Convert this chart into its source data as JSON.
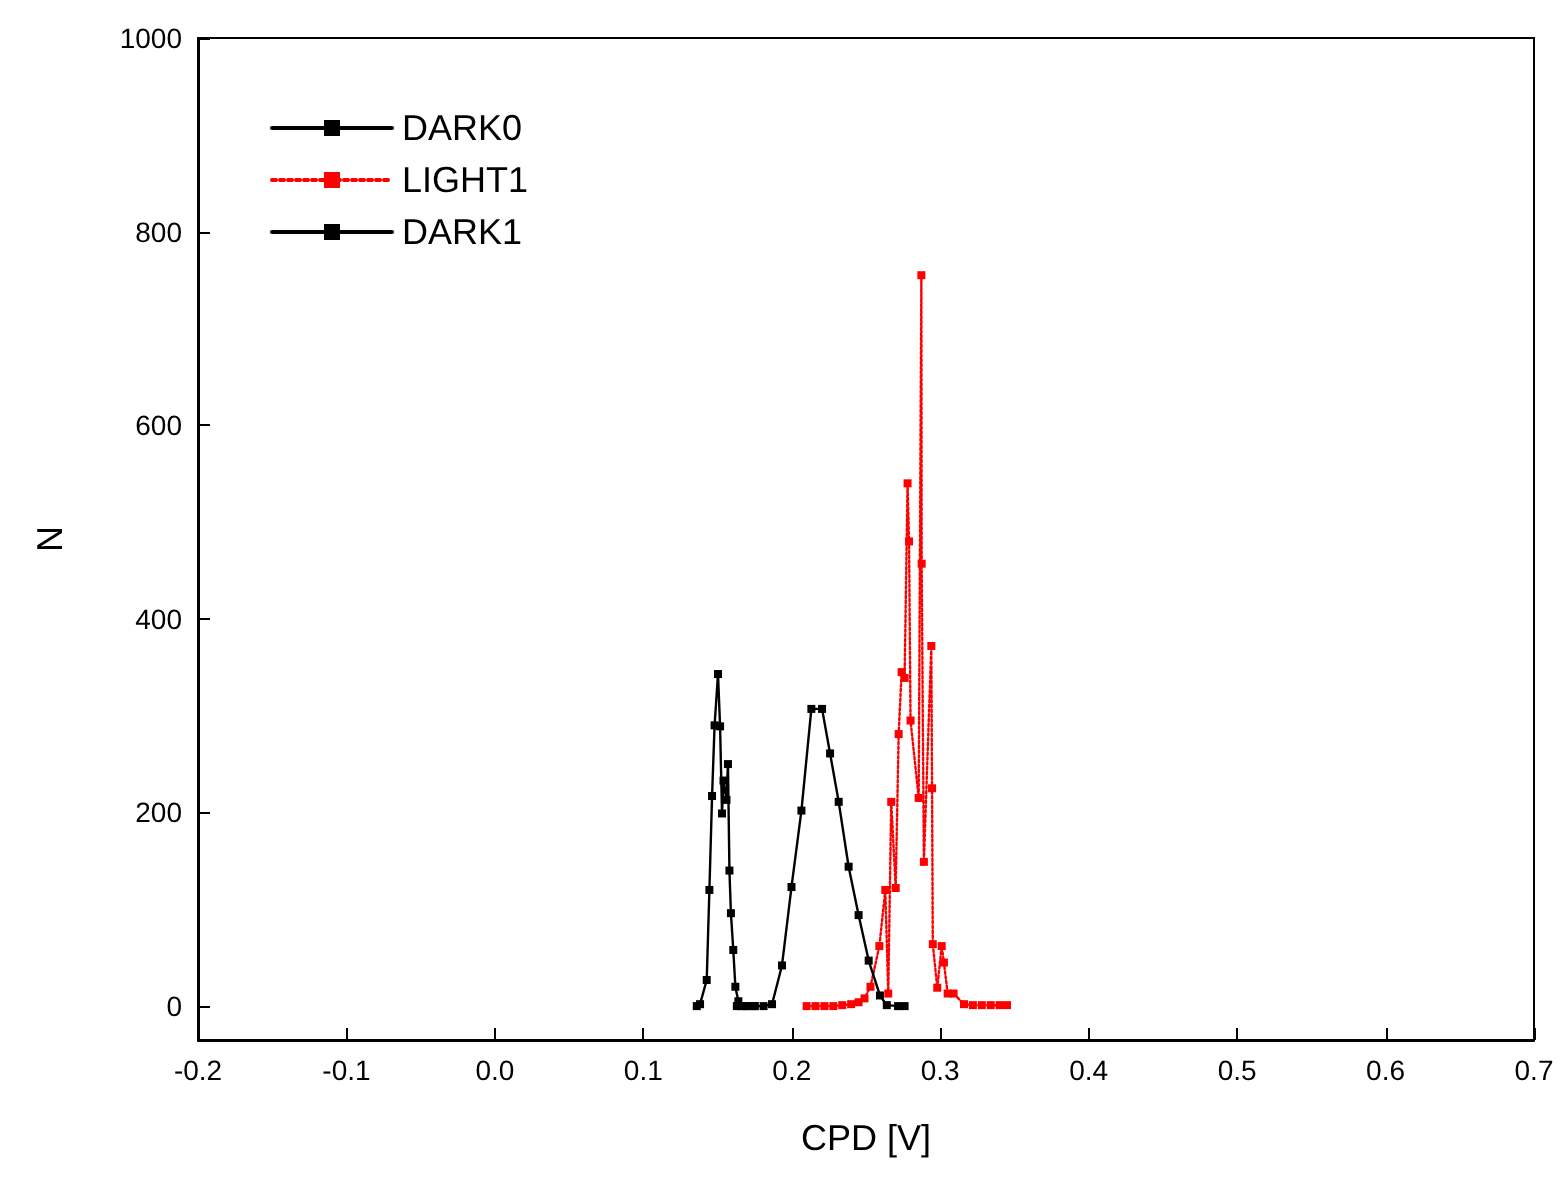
{
  "chart_data": {
    "type": "line",
    "xlabel": "CPD [V]",
    "ylabel": "N",
    "xlim": [
      -0.2,
      0.7
    ],
    "xticks": [
      -0.2,
      -0.1,
      {
        "value": 0,
        "label": "0.0"
      },
      0.1,
      0.2,
      0.3,
      0.4,
      0.5,
      0.6,
      0.7
    ],
    "ylim": [
      -35,
      1000
    ],
    "yticks": [
      0,
      200,
      400,
      600,
      800,
      1000
    ],
    "grid": false,
    "legend": "top left",
    "marker": "square",
    "series": [
      {
        "name": "DARK0",
        "color": "#000000",
        "line_style": "solid",
        "x": [
          0.136,
          0.1382,
          0.1427,
          0.1445,
          0.1463,
          0.148,
          0.1503,
          0.1517,
          0.153,
          0.154,
          0.156,
          0.157,
          0.158,
          0.159,
          0.1606,
          0.162,
          0.164,
          0.166,
          0.17,
          0.175
        ],
        "values": [
          0,
          2,
          27,
          120,
          217,
          290,
          343,
          289,
          199,
          233,
          213,
          250,
          140,
          96,
          58,
          20,
          5,
          0,
          0,
          0
        ]
      },
      {
        "name": "LIGHT1",
        "color": "#ff0000",
        "line_style": "dotted",
        "x": [
          0.21,
          0.216,
          0.222,
          0.228,
          0.234,
          0.24,
          0.245,
          0.249,
          0.253,
          0.259,
          0.263,
          0.265,
          0.267,
          0.27,
          0.272,
          0.274,
          0.276,
          0.278,
          0.279,
          0.28,
          0.2855,
          0.2873,
          0.2875,
          0.289,
          0.294,
          0.2945,
          0.295,
          0.298,
          0.301,
          0.3025,
          0.305,
          0.309,
          0.316,
          0.322,
          0.328,
          0.334,
          0.34,
          0.345
        ],
        "values": [
          0,
          0,
          0,
          0,
          1,
          2,
          4,
          8,
          20,
          62,
          120,
          13,
          211,
          122,
          281,
          345,
          339,
          540,
          480,
          295,
          215,
          755,
          457,
          149,
          372,
          225,
          64,
          19,
          62,
          45,
          13,
          13,
          2,
          1,
          1,
          1,
          1,
          1
        ]
      },
      {
        "name": "DARK1",
        "color": "#000000",
        "line_style": "solid",
        "x": [
          0.163,
          0.169,
          0.175,
          0.181,
          0.1867,
          0.1934,
          0.1998,
          0.2065,
          0.2132,
          0.2204,
          0.2258,
          0.2316,
          0.2383,
          0.245,
          0.2518,
          0.2594,
          0.264,
          0.2716,
          0.276
        ],
        "values": [
          0,
          0,
          0,
          0,
          2,
          42,
          123,
          202,
          307,
          307,
          261,
          211,
          144,
          94,
          47,
          11,
          1,
          0,
          0
        ]
      }
    ]
  }
}
